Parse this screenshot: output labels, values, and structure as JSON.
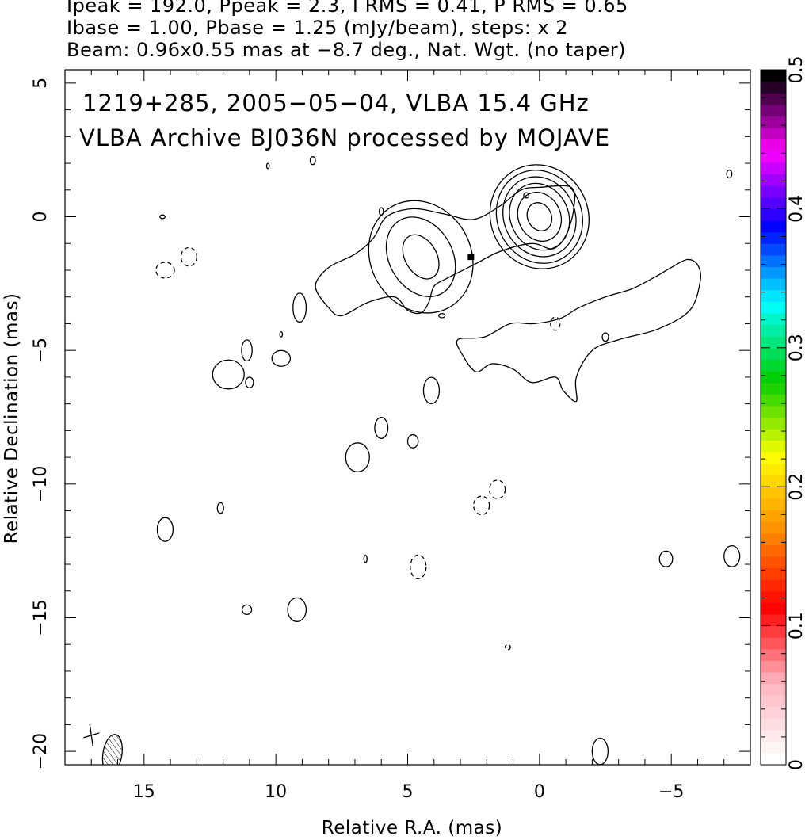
{
  "header": {
    "line1": "Ipeak = 192.0, Ppeak = 2.3, I RMS = 0.41, P RMS = 0.65",
    "line2": "Ibase = 1.00, Pbase = 1.25 (mJy/beam), steps: x 2",
    "line3": "Beam: 0.96x0.55 mas at −8.7 deg., Nat. Wgt. (no taper)"
  },
  "plot_text": {
    "line1": "1219+285, 2005−05−04, VLBA 15.4 GHz",
    "line2": "VLBA Archive BJ036N processed by MOJAVE"
  },
  "chart_data": {
    "type": "contour",
    "xlabel": "Relative R.A. (mas)",
    "ylabel": "Relative Declination (mas)",
    "xlim": [
      18.0,
      -8.0
    ],
    "ylim": [
      -20.5,
      5.5
    ],
    "x_ticks": [
      {
        "value": 15,
        "label": "15"
      },
      {
        "value": 10,
        "label": "10"
      },
      {
        "value": 5,
        "label": "5"
      },
      {
        "value": 0,
        "label": "0"
      },
      {
        "value": -5,
        "label": "−5"
      }
    ],
    "y_ticks": [
      {
        "value": 5,
        "label": "5"
      },
      {
        "value": 0,
        "label": "0"
      },
      {
        "value": -5,
        "label": "−5"
      },
      {
        "value": -10,
        "label": "−10"
      },
      {
        "value": -15,
        "label": "−15"
      },
      {
        "value": -20,
        "label": "−20"
      }
    ],
    "colorbar": {
      "range": [
        0,
        0.5
      ],
      "ticks": [
        {
          "value": 0,
          "label": "0"
        },
        {
          "value": 0.1,
          "label": "0.1"
        },
        {
          "value": 0.2,
          "label": "0.2"
        },
        {
          "value": 0.3,
          "label": "0.3"
        },
        {
          "value": 0.4,
          "label": "0.4"
        },
        {
          "value": 0.5,
          "label": "0.5"
        }
      ],
      "colors": [
        "#ffffff",
        "#ffb6c1",
        "#ff0000",
        "#ff8c00",
        "#ffff00",
        "#00cc00",
        "#00ffff",
        "#0000ff",
        "#ff00ff",
        "#000000"
      ]
    },
    "core": {
      "x": 0.0,
      "y": 0.0,
      "contours": [
        [
          0.45,
          0.55
        ],
        [
          0.8,
          0.95
        ],
        [
          1.1,
          1.3
        ],
        [
          1.35,
          1.55
        ],
        [
          1.6,
          1.8
        ],
        [
          1.85,
          2.0
        ]
      ]
    },
    "knot": {
      "x": 4.5,
      "y": -1.5,
      "contours": [
        [
          0.6,
          0.9
        ],
        [
          1.2,
          1.6
        ],
        [
          1.9,
          2.2
        ]
      ]
    },
    "jet_outline": [
      [
        -1.2,
        1.1
      ],
      [
        -1.3,
        0.3
      ],
      [
        -1.0,
        -0.7
      ],
      [
        -0.5,
        -1.2
      ],
      [
        0.3,
        -1.0
      ],
      [
        1.5,
        -1.3
      ],
      [
        2.5,
        -1.8
      ],
      [
        3.5,
        -2.3
      ],
      [
        4.0,
        -2.6
      ],
      [
        4.2,
        -3.2
      ],
      [
        4.5,
        -3.6
      ],
      [
        5.0,
        -3.5
      ],
      [
        5.5,
        -3.0
      ],
      [
        6.5,
        -3.2
      ],
      [
        7.5,
        -3.7
      ],
      [
        8.0,
        -3.4
      ],
      [
        8.5,
        -2.6
      ],
      [
        8.0,
        -1.9
      ],
      [
        7.0,
        -1.4
      ],
      [
        6.3,
        -0.8
      ],
      [
        5.8,
        0.0
      ],
      [
        4.8,
        0.3
      ],
      [
        3.6,
        0.1
      ],
      [
        2.5,
        -0.1
      ],
      [
        1.5,
        0.4
      ],
      [
        0.7,
        1.0
      ],
      [
        0.0,
        1.1
      ]
    ],
    "west_component": [
      [
        -6.1,
        -2.4
      ],
      [
        -6.0,
        -1.8
      ],
      [
        -5.6,
        -1.6
      ],
      [
        -5.0,
        -1.9
      ],
      [
        -4.3,
        -2.3
      ],
      [
        -3.5,
        -2.7
      ],
      [
        -2.5,
        -3.0
      ],
      [
        -1.5,
        -3.4
      ],
      [
        -0.8,
        -3.8
      ],
      [
        0.2,
        -4.0
      ],
      [
        1.1,
        -4.0
      ],
      [
        2.1,
        -4.5
      ],
      [
        3.1,
        -4.6
      ],
      [
        2.9,
        -5.2
      ],
      [
        2.4,
        -5.8
      ],
      [
        1.8,
        -5.5
      ],
      [
        1.0,
        -5.7
      ],
      [
        0.3,
        -6.2
      ],
      [
        -0.6,
        -6.0
      ],
      [
        -0.9,
        -6.5
      ],
      [
        -1.4,
        -6.9
      ],
      [
        -1.4,
        -6.0
      ],
      [
        -2.0,
        -5.0
      ],
      [
        -3.0,
        -4.6
      ],
      [
        -4.5,
        -4.2
      ],
      [
        -5.7,
        -3.5
      ]
    ],
    "negative_blobs": [
      [
        2.2,
        -10.8,
        0.3,
        0.35
      ],
      [
        1.6,
        -10.2,
        0.3,
        0.35
      ],
      [
        4.6,
        -13.1,
        0.3,
        0.45
      ],
      [
        13.3,
        -1.5,
        0.3,
        0.35
      ],
      [
        14.2,
        -2.0,
        0.35,
        0.3
      ],
      [
        -0.6,
        -4.0,
        0.18,
        0.25
      ],
      [
        1.2,
        -16.1,
        0.1,
        0.1
      ]
    ],
    "positive_blobs": [
      [
        11.8,
        -5.9,
        0.6,
        0.55
      ],
      [
        9.8,
        -5.3,
        0.35,
        0.3
      ],
      [
        11.0,
        -6.2,
        0.15,
        0.2
      ],
      [
        11.1,
        -5.0,
        0.2,
        0.4
      ],
      [
        6.9,
        -9.0,
        0.45,
        0.55
      ],
      [
        6.0,
        -7.9,
        0.25,
        0.4
      ],
      [
        4.8,
        -8.4,
        0.2,
        0.25
      ],
      [
        4.1,
        -6.5,
        0.3,
        0.5
      ],
      [
        14.2,
        -11.7,
        0.3,
        0.45
      ],
      [
        12.1,
        -10.9,
        0.12,
        0.2
      ],
      [
        9.2,
        -14.7,
        0.35,
        0.45
      ],
      [
        11.1,
        -14.7,
        0.18,
        0.18
      ],
      [
        6.6,
        -12.8,
        0.06,
        0.14
      ],
      [
        3.7,
        -3.7,
        0.12,
        0.08
      ],
      [
        9.1,
        -3.4,
        0.25,
        0.55
      ],
      [
        9.8,
        -4.4,
        0.05,
        0.1
      ],
      [
        14.3,
        0.0,
        0.1,
        0.07
      ],
      [
        8.6,
        2.1,
        0.1,
        0.15
      ],
      [
        10.3,
        1.9,
        0.05,
        0.1
      ],
      [
        6.0,
        0.2,
        0.08,
        0.14
      ],
      [
        -7.2,
        1.6,
        0.1,
        0.15
      ],
      [
        -7.3,
        -12.7,
        0.3,
        0.4
      ],
      [
        -4.8,
        -12.8,
        0.25,
        0.3
      ],
      [
        -2.5,
        -4.5,
        0.12,
        0.16
      ],
      [
        -2.3,
        -20.0,
        0.3,
        0.5
      ],
      [
        0.5,
        0.8,
        0.1,
        0.1
      ]
    ],
    "beam": {
      "x": 16.2,
      "y": -20.1,
      "major": 0.96,
      "minor": 0.55,
      "pa": -8.7
    },
    "cross": {
      "x": 17.0,
      "y": -19.4
    }
  }
}
